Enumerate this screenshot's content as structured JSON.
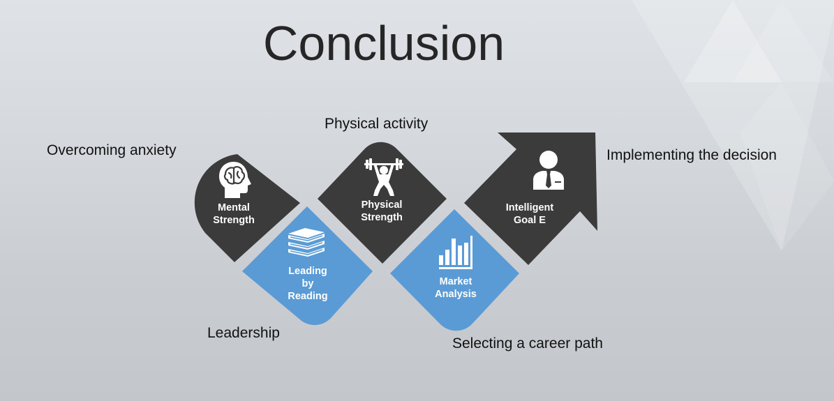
{
  "slide": {
    "title": "Conclusion"
  },
  "steps": [
    {
      "label": "Mental\nStrength",
      "caption": "Overcoming anxiety",
      "icon": "brain-head-icon",
      "color": "#3b3b3b"
    },
    {
      "label": "Leading\nby\nReading",
      "caption": "Leadership",
      "icon": "books-icon",
      "color": "#5b9bd5"
    },
    {
      "label": "Physical\nStrength",
      "caption": "Physical activity",
      "icon": "weightlifter-icon",
      "color": "#3b3b3b"
    },
    {
      "label": "Market\nAnalysis",
      "caption": "Selecting a career path",
      "icon": "bar-chart-icon",
      "color": "#5b9bd5"
    },
    {
      "label": "Intelligent\nGoal  E",
      "caption": "Implementing the decision",
      "icon": "businessman-icon",
      "color": "#3b3b3b"
    }
  ]
}
